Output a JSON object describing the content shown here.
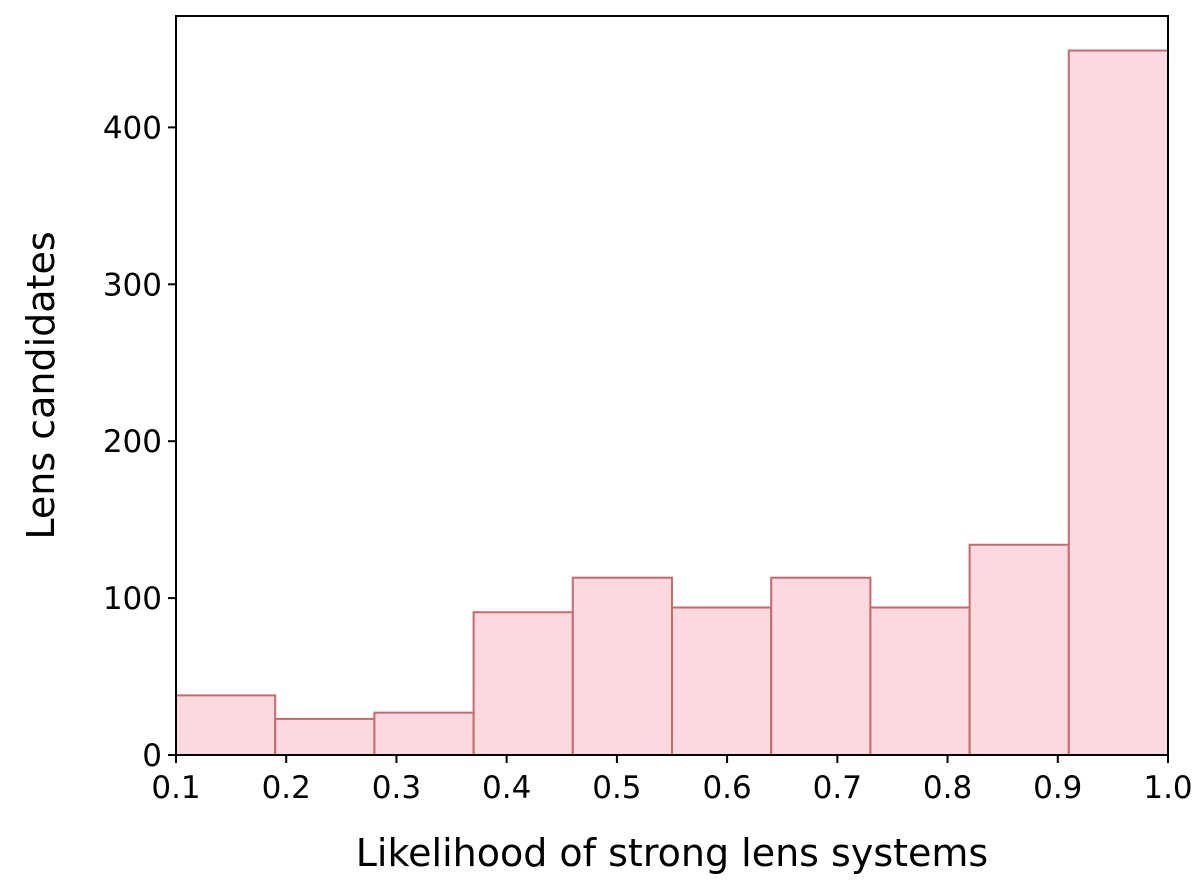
{
  "chart_data": {
    "type": "bar",
    "subtype": "histogram",
    "title": "",
    "xlabel": "Likelihood of strong lens systems",
    "ylabel": "Lens candidates",
    "xlim": [
      0.1,
      1.0
    ],
    "ylim": [
      0,
      471
    ],
    "x_ticks": [
      "0.1",
      "0.2",
      "0.3",
      "0.4",
      "0.5",
      "0.6",
      "0.7",
      "0.8",
      "0.9",
      "1.0"
    ],
    "y_ticks": [
      "0",
      "100",
      "200",
      "300",
      "400"
    ],
    "bin_edges": [
      0.1,
      0.19,
      0.28,
      0.37,
      0.46,
      0.55,
      0.64,
      0.73,
      0.82,
      0.91,
      1.0
    ],
    "values": [
      38,
      23,
      27,
      91,
      113,
      94,
      113,
      94,
      134,
      449
    ],
    "grid": false,
    "colors": {
      "bar_fill": "#fcd8df",
      "bar_edge": "#c46b6f",
      "axis": "#000000"
    }
  }
}
